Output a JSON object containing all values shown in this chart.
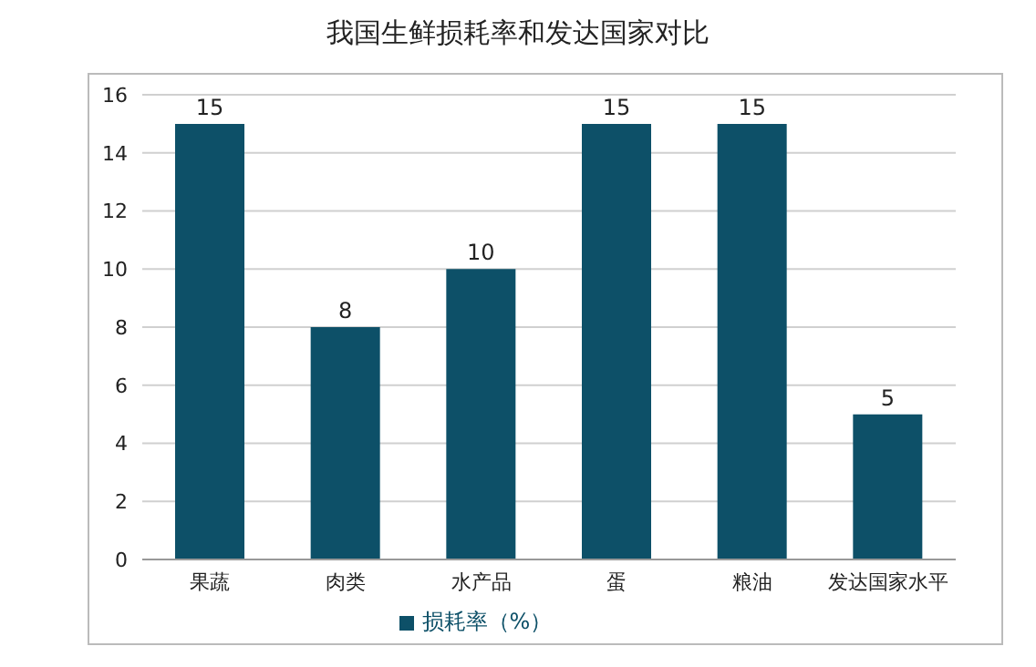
{
  "chart_data": {
    "type": "bar",
    "title": "我国生鲜损耗率和发达国家对比",
    "categories": [
      "果蔬",
      "肉类",
      "水产品",
      "蛋",
      "粮油",
      "发达国家水平"
    ],
    "series": [
      {
        "name": "损耗率（%）",
        "color": "#0d5068",
        "values": [
          15,
          8,
          10,
          15,
          15,
          5
        ]
      }
    ],
    "ylim": [
      0,
      16
    ],
    "yticks": [
      0,
      2,
      4,
      6,
      8,
      10,
      12,
      14,
      16
    ],
    "grid": "y",
    "legend": "bottom",
    "data_labels": true
  }
}
